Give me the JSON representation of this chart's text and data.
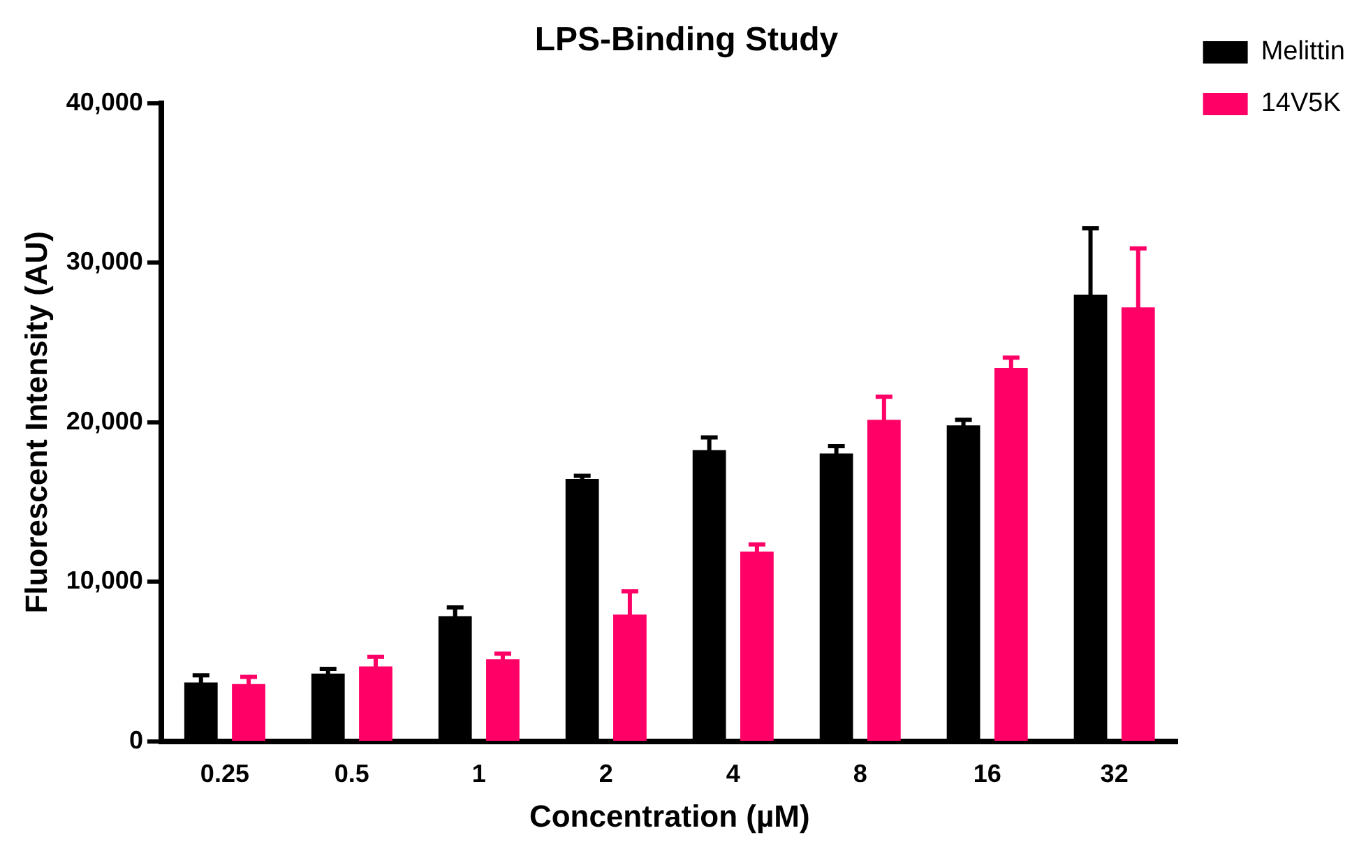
{
  "chart_data": {
    "type": "bar",
    "title": "LPS-Binding Study",
    "xlabel": "Concentration (µM)",
    "ylabel": "Fluorescent Intensity (AU)",
    "categories": [
      "0.25",
      "0.5",
      "1",
      "2",
      "4",
      "8",
      "16",
      "32"
    ],
    "series": [
      {
        "name": "Melittin",
        "color": "#000000",
        "values": [
          3700,
          4250,
          7850,
          16450,
          18250,
          18050,
          19800,
          28000
        ],
        "errors": [
          450,
          300,
          550,
          200,
          800,
          450,
          350,
          4150
        ]
      },
      {
        "name": "14V5K",
        "color": "#ff0066",
        "values": [
          3600,
          4700,
          5150,
          7950,
          11900,
          20150,
          23400,
          27200
        ],
        "errors": [
          450,
          600,
          350,
          1450,
          450,
          1450,
          650,
          3700
        ]
      }
    ],
    "ylim": [
      0,
      40000
    ],
    "yticks": [
      {
        "value": 0,
        "label": "0"
      },
      {
        "value": 10000,
        "label": "10,000"
      },
      {
        "value": 20000,
        "label": "20,000"
      },
      {
        "value": 30000,
        "label": "30,000"
      },
      {
        "value": 40000,
        "label": "40,000"
      }
    ],
    "grid": false,
    "legend": "top right"
  }
}
